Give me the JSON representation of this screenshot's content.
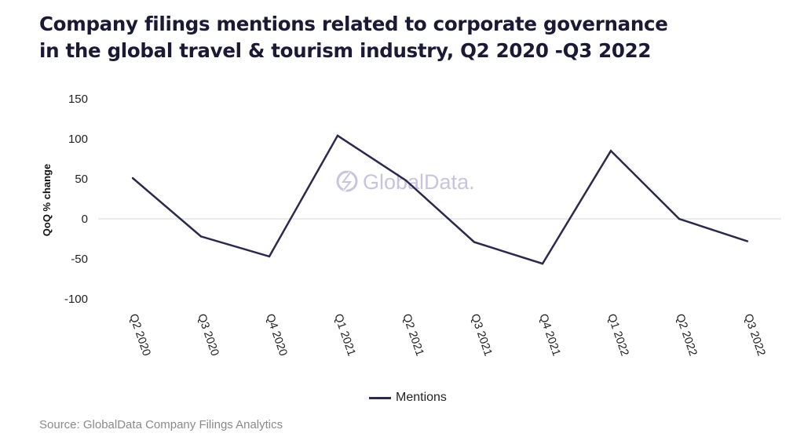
{
  "chart_data": {
    "type": "line",
    "title_lines": [
      "Company filings mentions related to corporate governance",
      "in the global travel & tourism industry, Q2 2020 -Q3 2022"
    ],
    "xlabel": "",
    "ylabel": "QoQ % change",
    "ylim": [
      -100,
      150
    ],
    "yticks": [
      150,
      100,
      50,
      0,
      -50,
      -100
    ],
    "ytick_labels": [
      "150",
      "100",
      "50",
      "0",
      "-50",
      "-100"
    ],
    "grid": "zero line only",
    "categories": [
      "Q2 2020",
      "Q3 2020",
      "Q4 2020",
      "Q1 2021",
      "Q2 2021",
      "Q3 2021",
      "Q4 2021",
      "Q1 2022",
      "Q2 2022",
      "Q3 2022"
    ],
    "series": [
      {
        "name": "Mentions",
        "color": "#2b2a4c",
        "values": [
          51,
          -22,
          -47,
          104,
          48,
          -29,
          -56,
          85,
          0,
          -28
        ]
      }
    ],
    "legend_position": "bottom-center",
    "watermark": "GlobalData.",
    "source": "Source: GlobalData Company Filings Analytics"
  }
}
